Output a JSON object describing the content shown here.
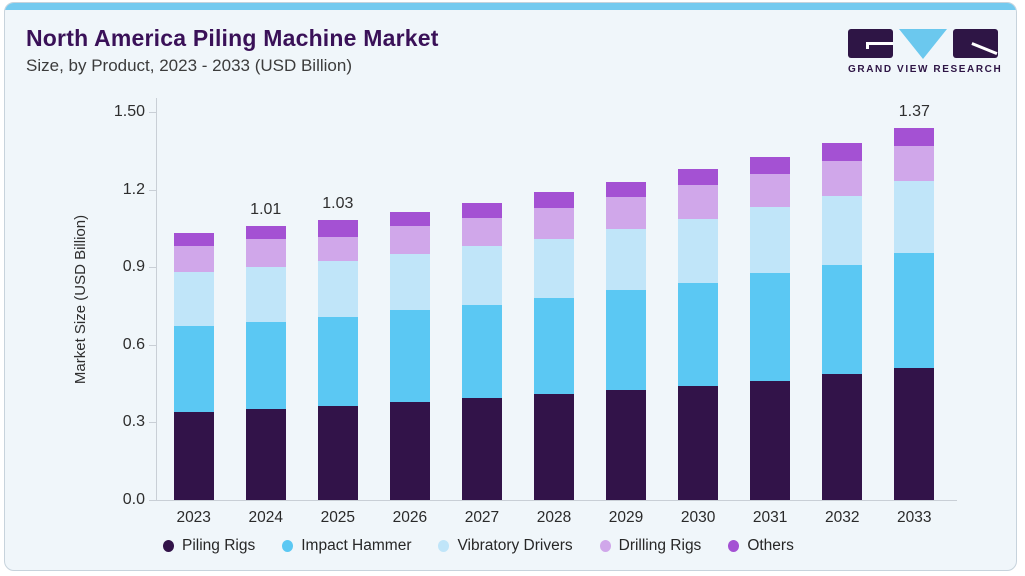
{
  "page": {
    "background": "#FFFFFF",
    "card_background": "#F0F6FA",
    "top_accent_color": "#74CAEF"
  },
  "header": {
    "title": "North America Piling Machine Market",
    "subtitle": "Size, by Product, 2023 - 2033 (USD Billion)",
    "title_color": "#3A1158"
  },
  "logo": {
    "text": "GRAND VIEW RESEARCH",
    "dark_color": "#2E1545",
    "accent_color": "#6BC8EE"
  },
  "chart_data": {
    "type": "bar",
    "stacked": true,
    "title": "North America Piling Machine Market",
    "subtitle": "Size, by Product, 2023 - 2033 (USD Billion)",
    "xlabel": "",
    "ylabel": "Market Size (USD Billion)",
    "ylim": [
      0,
      1.5
    ],
    "grid": false,
    "legend_position": "bottom",
    "yticks": [
      {
        "value": 0.0,
        "label": "0.0"
      },
      {
        "value": 0.3,
        "label": "0.3"
      },
      {
        "value": 0.6,
        "label": "0.6"
      },
      {
        "value": 0.9,
        "label": "0.9"
      },
      {
        "value": 1.2,
        "label": "1.2"
      },
      {
        "value": 1.5,
        "label": "1.50"
      }
    ],
    "categories": [
      "2023",
      "2024",
      "2025",
      "2026",
      "2027",
      "2028",
      "2029",
      "2030",
      "2031",
      "2032",
      "2033"
    ],
    "series": [
      {
        "name": "Piling Rigs",
        "color": "#321349",
        "values": [
          0.325,
          0.335,
          0.345,
          0.36,
          0.375,
          0.39,
          0.405,
          0.42,
          0.44,
          0.465,
          0.485
        ]
      },
      {
        "name": "Impact Hammer",
        "color": "#5BC8F3",
        "values": [
          0.315,
          0.32,
          0.33,
          0.34,
          0.345,
          0.355,
          0.37,
          0.38,
          0.395,
          0.4,
          0.425
        ]
      },
      {
        "name": "Vibratory Drivers",
        "color": "#C0E5F9",
        "values": [
          0.2,
          0.205,
          0.205,
          0.205,
          0.215,
          0.215,
          0.225,
          0.235,
          0.245,
          0.255,
          0.265
        ]
      },
      {
        "name": "Drilling Rigs",
        "color": "#D0A7EA",
        "values": [
          0.095,
          0.1,
          0.09,
          0.105,
          0.105,
          0.115,
          0.115,
          0.125,
          0.12,
          0.13,
          0.13
        ]
      },
      {
        "name": "Others",
        "color": "#A451D3",
        "values": [
          0.05,
          0.05,
          0.06,
          0.05,
          0.055,
          0.06,
          0.055,
          0.06,
          0.065,
          0.065,
          0.065
        ]
      }
    ],
    "bar_total_labels": [
      "",
      "1.01",
      "1.03",
      "",
      "",
      "",
      "",
      "",
      "",
      "",
      "1.37"
    ]
  }
}
